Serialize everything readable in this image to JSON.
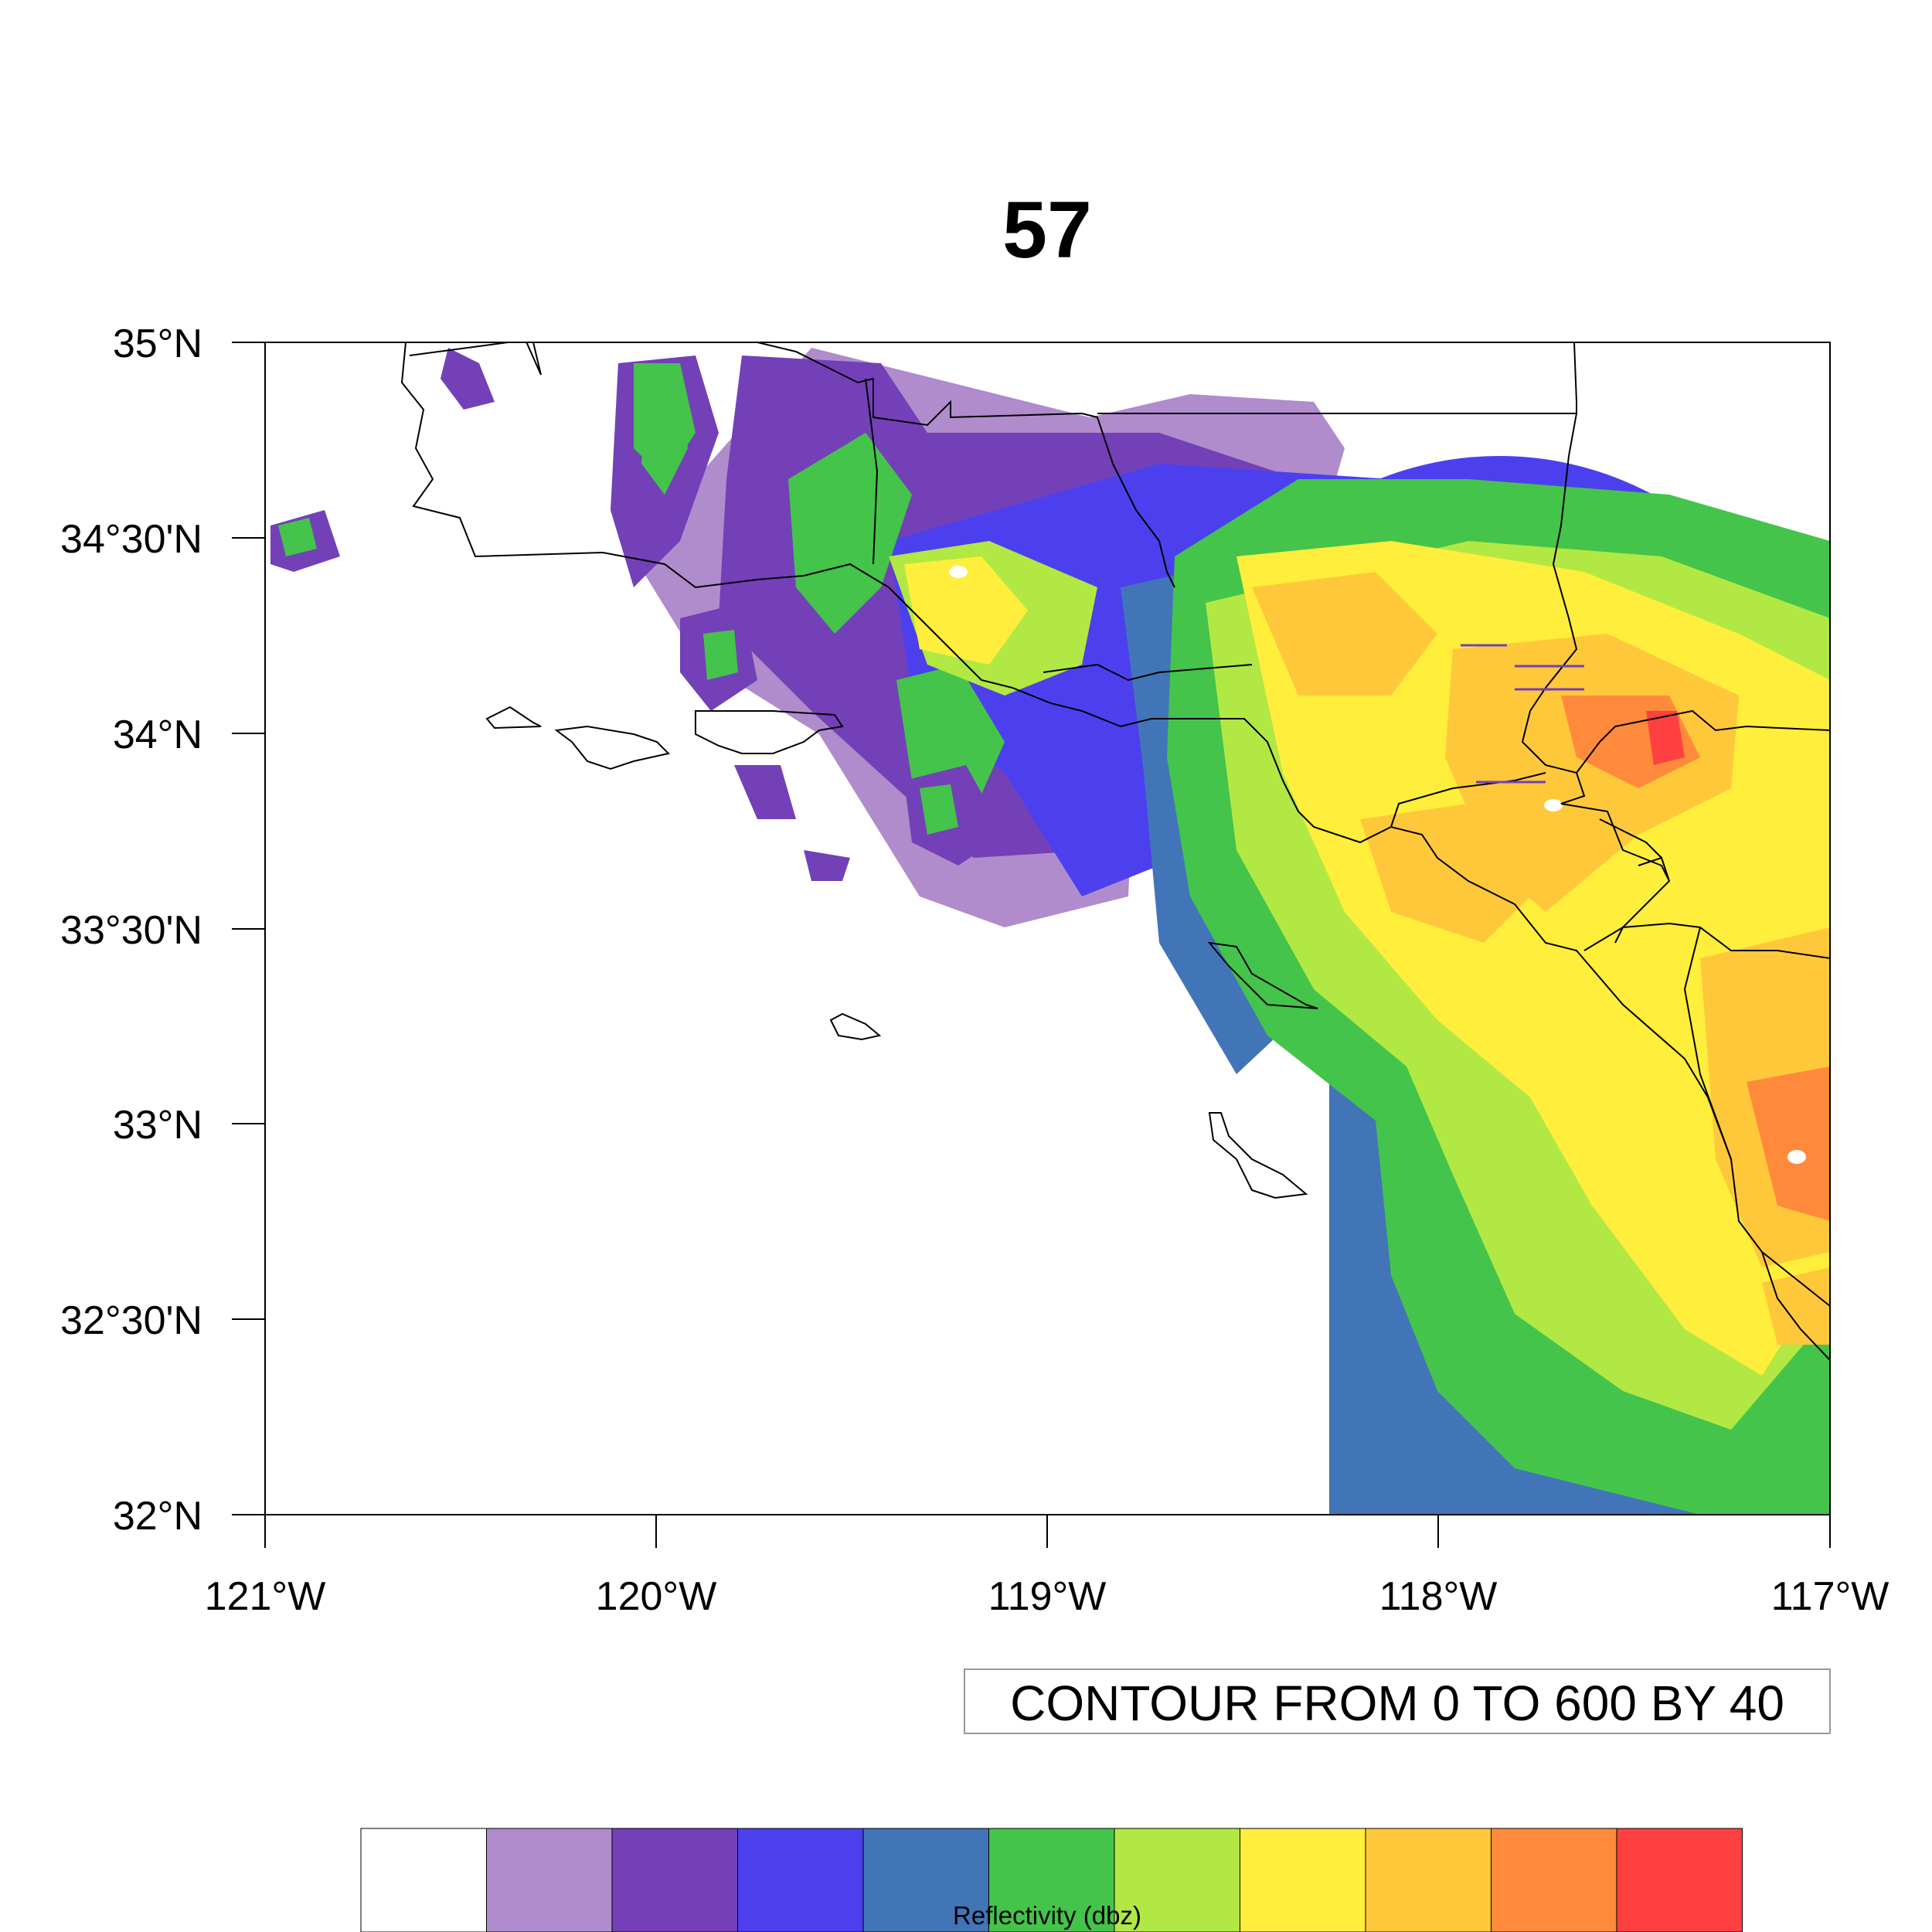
{
  "title": "57",
  "map": {
    "lon_range": [
      -121,
      -117
    ],
    "lat_range": [
      32,
      35
    ],
    "lon_ticks": [
      "121°W",
      "120°W",
      "119°W",
      "118°W",
      "117°W"
    ],
    "lat_ticks": [
      "35°N",
      "34°30'N",
      "34°N",
      "33°30'N",
      "33°N",
      "32°30'N",
      "32°N"
    ],
    "coastline_color": "#000000"
  },
  "info_label": "CONTOUR FROM 0 TO 600 BY 40",
  "colorbar": {
    "label": "Reflectivity (dbz)",
    "colors": [
      "#ffffff",
      "#b08ccc",
      "#7340b8",
      "#4c40ee",
      "#4175b8",
      "#44c44a",
      "#b2e844",
      "#ffee3b",
      "#ffc83b",
      "#ff8a3b",
      "#ff4040"
    ]
  }
}
